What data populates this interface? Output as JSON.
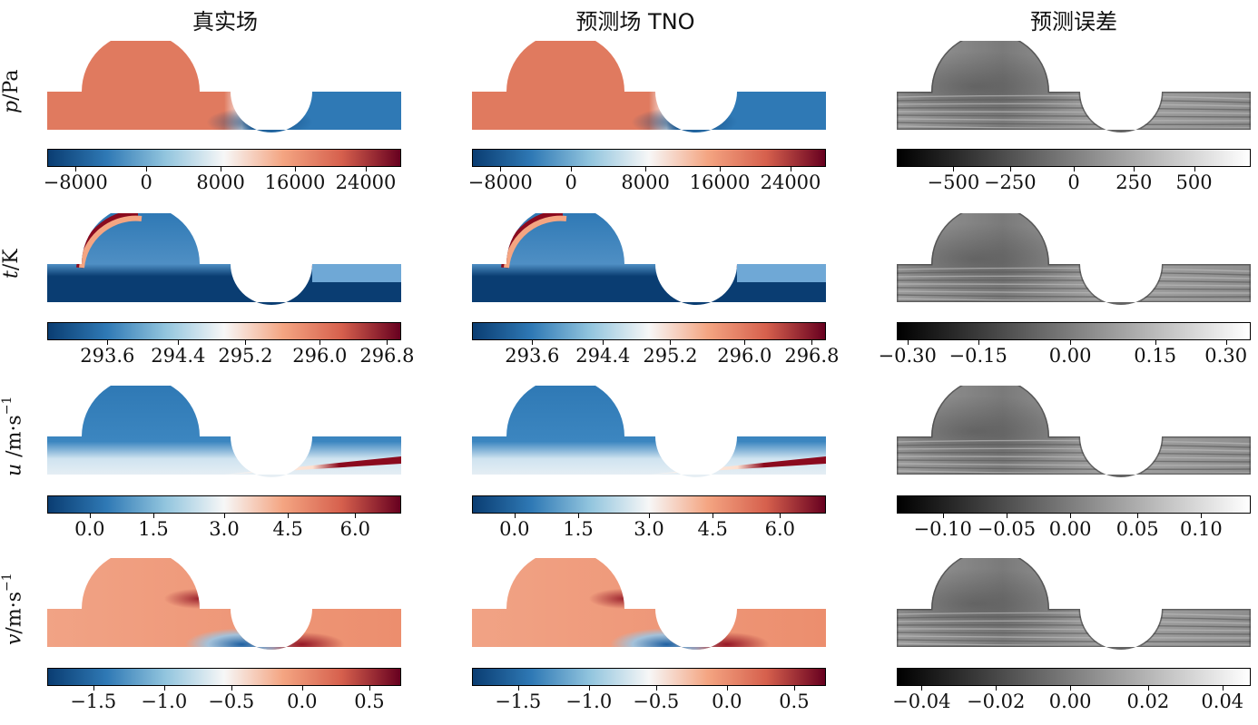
{
  "columns": [
    "真实场",
    "预测场 TNO",
    "预测误差"
  ],
  "rows": [
    {
      "label_var": "p",
      "label_unit": "/Pa",
      "colorbars": [
        {
          "kind": "rdbu",
          "ticks": [
            "−8000",
            "0",
            "8000",
            "16000",
            "24000"
          ]
        },
        {
          "kind": "rdbu",
          "ticks": [
            "−8000",
            "0",
            "8000",
            "16000",
            "24000"
          ]
        },
        {
          "kind": "gray",
          "ticks": [
            "−500",
            "−250",
            "0",
            "250",
            "500"
          ]
        }
      ]
    },
    {
      "label_var": "t",
      "label_unit": "/K",
      "colorbars": [
        {
          "kind": "rdbu",
          "ticks": [
            "293.6",
            "294.4",
            "295.2",
            "296.0",
            "296.8"
          ]
        },
        {
          "kind": "rdbu",
          "ticks": [
            "293.6",
            "294.4",
            "295.2",
            "296.0",
            "296.8"
          ]
        },
        {
          "kind": "gray",
          "ticks": [
            "−0.30",
            "−0.15",
            "0.00",
            "0.15",
            "0.30"
          ]
        }
      ]
    },
    {
      "label_var": "u",
      "label_unit": " /m·s",
      "label_sup": "−1",
      "colorbars": [
        {
          "kind": "rdbu",
          "ticks": [
            "0.0",
            "1.5",
            "3.0",
            "4.5",
            "6.0"
          ]
        },
        {
          "kind": "rdbu",
          "ticks": [
            "0.0",
            "1.5",
            "3.0",
            "4.5",
            "6.0"
          ]
        },
        {
          "kind": "gray",
          "ticks": [
            "−0.10",
            "−0.05",
            "0.00",
            "0.05",
            "0.10"
          ]
        }
      ]
    },
    {
      "label_var": "v",
      "label_unit": "/m·s",
      "label_sup": "−1",
      "colorbars": [
        {
          "kind": "rdbu",
          "ticks": [
            "−1.5",
            "−1.0",
            "−0.5",
            "0.0",
            "0.5"
          ]
        },
        {
          "kind": "rdbu",
          "ticks": [
            "−1.5",
            "−1.0",
            "−0.5",
            "0.0",
            "0.5"
          ]
        },
        {
          "kind": "gray",
          "ticks": [
            "−0.04",
            "−0.02",
            "0.00",
            "0.02",
            "0.04"
          ]
        }
      ]
    }
  ],
  "colors": {
    "red": "#e07a5f",
    "deep_red": "#8b0a1e",
    "blue": "#2f79b5",
    "deep_blue": "#0a3d72",
    "white": "#f7f7f7",
    "gray": "#8c8c8c"
  }
}
